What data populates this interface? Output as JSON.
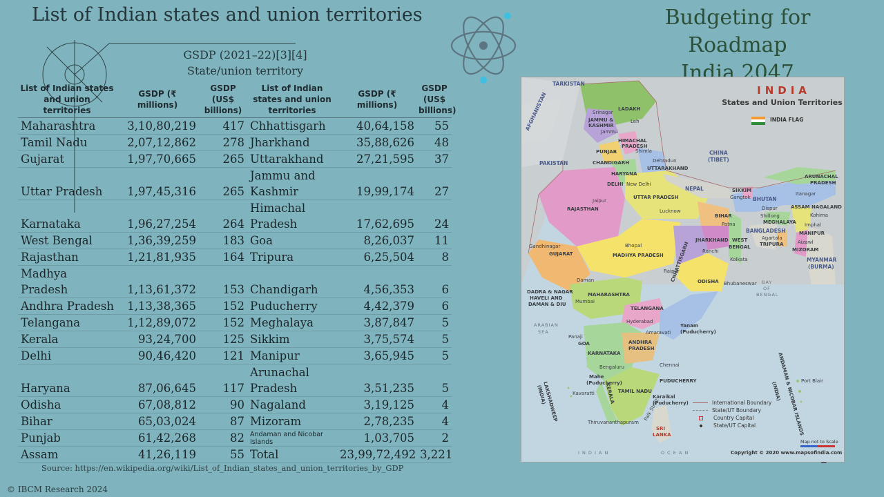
{
  "title": "List of Indian states and union territories",
  "brand": [
    "Budgeting for Roadmap",
    "India 2047"
  ],
  "header_block": [
    "GSDP (2021–22)[3][4]",
    "State/union territory"
  ],
  "columns": [
    "List of Indian states and union territories",
    "GSDP (₹ millions)",
    "GSDP (US$ billions)",
    "List of Indian states and union territories",
    "GSDP (₹ millions)",
    "GSDP (US$ billions)"
  ],
  "rows": [
    [
      "Maharashtra",
      "3,10,80,219",
      "417",
      "Chhattisgarh",
      "40,64,158",
      "55"
    ],
    [
      "Tamil Nadu",
      "2,07,12,862",
      "278",
      "Jharkhand",
      "35,88,626",
      "48"
    ],
    [
      "Gujarat",
      "1,97,70,665",
      "265",
      "Uttarakhand",
      "27,21,595",
      "37"
    ],
    [
      "Uttar Pradesh",
      "1,97,45,316",
      "265",
      "Jammu and Kashmir",
      "19,99,174",
      "27"
    ],
    [
      "Karnataka",
      "1,96,27,254",
      "264",
      "Himachal Pradesh",
      "17,62,695",
      "24"
    ],
    [
      "West Bengal",
      "1,36,39,259",
      "183",
      "Goa",
      "8,26,037",
      "11"
    ],
    [
      "Rajasthan",
      "1,21,81,935",
      "164",
      "Tripura",
      "6,25,504",
      "8"
    ],
    [
      "Madhya Pradesh",
      "1,13,61,372",
      "153",
      "Chandigarh",
      "4,56,353",
      "6"
    ],
    [
      "Andhra Pradesh",
      "1,13,38,365",
      "152",
      "Puducherry",
      "4,42,379",
      "6"
    ],
    [
      "Telangana",
      "1,12,89,072",
      "152",
      "Meghalaya",
      "3,87,847",
      "5"
    ],
    [
      "Kerala",
      "93,24,700",
      "125",
      "Sikkim",
      "3,75,574",
      "5"
    ],
    [
      "Delhi",
      "90,46,420",
      "121",
      "Manipur",
      "3,65,945",
      "5"
    ],
    [
      "Haryana",
      "87,06,645",
      "117",
      "Arunachal Pradesh",
      "3,51,235",
      "5"
    ],
    [
      "Odisha",
      "67,08,812",
      "90",
      "Nagaland",
      "3,19,125",
      "4"
    ],
    [
      "Bihar",
      "65,03,024",
      "87",
      "Mizoram",
      "2,78,235",
      "4"
    ],
    [
      "Punjab",
      "61,42,268",
      "82",
      "Andaman and Nicobar Islands",
      "1,03,705",
      "2"
    ],
    [
      "Assam",
      "41,26,119",
      "55",
      "Total",
      "23,99,72,492",
      "3,221"
    ]
  ],
  "source": "Source: https://en.wikipedia.org/wiki/List_of_Indian_states_and_union_territories_by_GDP",
  "copyright": "© IBCM Research 2024",
  "page_number": "2",
  "map": {
    "title": "INDIA",
    "subtitle": "States and Union Territories",
    "flag_label": "INDIA FLAG",
    "flag_colors": [
      "#f39a33",
      "#ffffff",
      "#2e8b3a"
    ],
    "labels": {
      "tarkistan": "TARKISTAN",
      "afghanistan": "AFGHANISTAN",
      "pakistan": "PAKISTAN",
      "china": "CHINA",
      "china2": "(TIBET)",
      "nepal": "NEPAL",
      "bhutan": "BHUTAN",
      "bangladesh": "BANGLADESH",
      "myanmar": "MYANMAR",
      "myanmar2": "(BURMA)",
      "ladakh": "LADAKH",
      "leh": "Leh",
      "srinagar": "Srinagar",
      "jk": "JAMMU &",
      "jk2": "KASHMIR",
      "jammu": "Jammu",
      "hp": "HIMACHAL",
      "hp2": "PRADESH",
      "shimla": "Shimla",
      "punjab": "PUNJAB",
      "chandigarh": "CHANDIGARH",
      "dehradun": "Dehradun",
      "uttarakhand": "UTTARAKHAND",
      "haryana": "HARYANA",
      "delhi": "DELHI",
      "newdelhi": "New Delhi",
      "jaipur": "Jaipur",
      "rajasthan": "RAJASTHAN",
      "up": "UTTAR PRADESH",
      "lucknow": "Lucknow",
      "sikkim": "SIKKIM",
      "gangtok": "Gangtok",
      "itanagar": "Itanagar",
      "arunachal": "ARUNACHAL",
      "arunachal2": "PRADESH",
      "assam": "ASSAM",
      "dispur": "Dispur",
      "nagaland": "NAGALAND",
      "kohima": "Kohima",
      "shillong": "Shillong",
      "meghalaya": "MEGHALAYA",
      "imphal": "Imphal",
      "manipur": "MANIPUR",
      "bihar": "BIHAR",
      "patna": "Patna",
      "west": "WEST",
      "bengal": "BENGAL",
      "agartala": "Agartala",
      "tripura": "TRIPURA",
      "aizawl": "Aizawl",
      "mizoram": "MIZORAM",
      "jharkhand": "JHARKHAND",
      "ranchi": "Ranchi",
      "kolkata": "Kolkata",
      "gandhinagar": "Gandhinagar",
      "gujarat": "GUJARAT",
      "bhopal": "Bhopal",
      "mp": "MADHYA PRADESH",
      "chhattisgarh": "CHHATTISGARH",
      "raipur": "Raipur",
      "odisha": "ODISHA",
      "bhubaneswar": "Bhubaneswar",
      "bay": "BAY",
      "of": "OF",
      "bengal_sea": "BENGAL",
      "daman": "Daman",
      "dnhdd": "DADRA & NAGAR",
      "dnhdd2": "HAVELI AND",
      "dnhdd3": "DAMAN & DIU",
      "mumbai": "Mumbai",
      "maharashtra": "MAHARASHTRA",
      "telangana": "TELANGANA",
      "hyderabad": "Hyderabad",
      "yanam": "Yanam",
      "yanam2": "(Puducherry)",
      "amaravati": "Amaravati",
      "arabian": "ARABIAN",
      "sea": "SEA",
      "panaji": "Panaji",
      "goa": "GOA",
      "karnataka": "KARNATAKA",
      "ap": "ANDHRA",
      "ap2": "PRADESH",
      "bengaluru": "Bengaluru",
      "chennai": "Chennai",
      "mahe": "Mahe",
      "mahe2": "(Puducherry)",
      "puducherry": "PUDUCHERRY",
      "lakshadweep": "LAKSHADWEEP",
      "lakshadweep2": "(INDIA)",
      "kavaratti": "Kavaratti",
      "kerala": "KERALA",
      "tamilnadu": "TAMIL NADU",
      "karaikal": "Karaikal",
      "karaikal2": "(Puducherry)",
      "thiruvananthapuram": "Thiruvananthapuram",
      "palkstrait": "Palk Strait",
      "srilanka": "SRI",
      "srilanka2": "LANKA",
      "andaman": "ANDAMAN & NICOBAR ISLANDS",
      "andaman2": "(INDIA)",
      "portblair": "Port Blair",
      "indian": "I N D I A N",
      "ocean": "O C E A N"
    },
    "legend": [
      "International Boundary",
      "State/UT Boundary",
      "Country Capital",
      "State/UT Capital"
    ],
    "scale_note": "Map not to Scale",
    "copyright": "Copyright © 2020 www.mapsofindia.com"
  }
}
